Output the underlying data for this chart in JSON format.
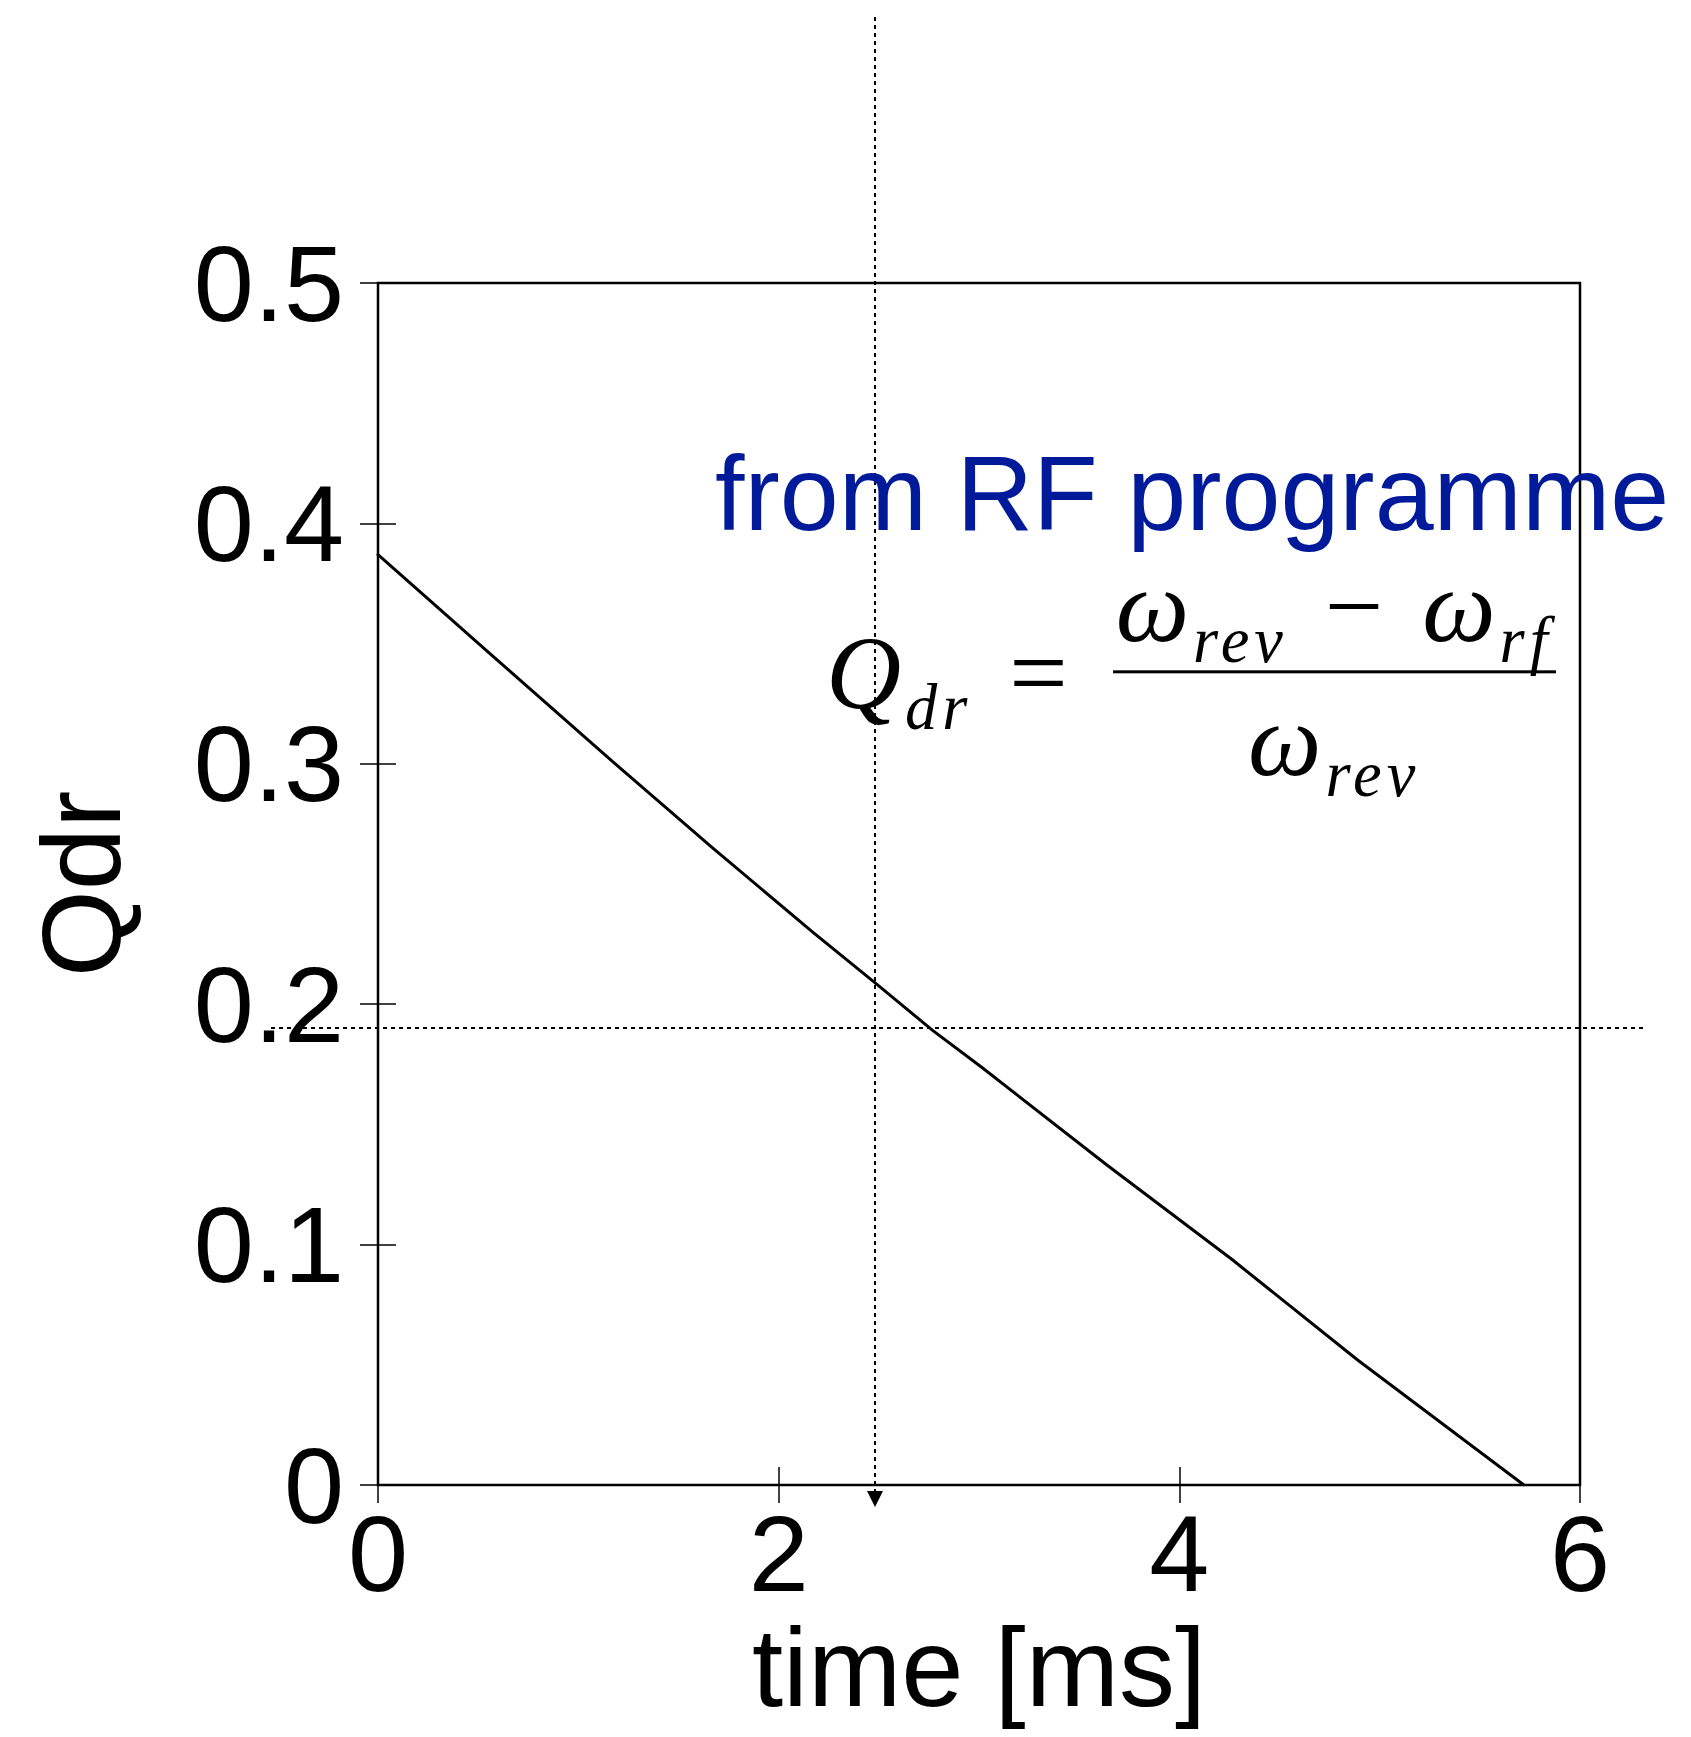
{
  "chart_data": {
    "type": "line",
    "xlabel": "time [ms]",
    "ylabel": "Qdr",
    "x": [
      0,
      0.57,
      1.17,
      1.67,
      2.17,
      2.48,
      2.77,
      3.01,
      3.64,
      4.26,
      4.89,
      5.72
    ],
    "values": [
      0.387,
      0.345,
      0.301,
      0.265,
      0.23,
      0.209,
      0.189,
      0.174,
      0.133,
      0.094,
      0.052,
      0
    ],
    "color": "#000000",
    "xlim": [
      0,
      6
    ],
    "ylim": [
      0,
      0.5
    ],
    "xticks": [
      0,
      2,
      4,
      6
    ],
    "yticks": [
      0,
      0.1,
      0.2,
      0.3,
      0.4,
      0.5
    ],
    "ref_lines": [
      {
        "axis": "y",
        "value": 0.19,
        "color": "#000000",
        "line_style": "dotted"
      },
      {
        "axis": "x",
        "value": 2.48,
        "color": "#000000",
        "line_style": "dotted"
      }
    ],
    "annotations": [
      "from RF programme",
      "Q$_{dr}$ =",
      "ω$_{rev}$ − ω$_{rf}$",
      "ω$_{rev}$"
    ]
  }
}
